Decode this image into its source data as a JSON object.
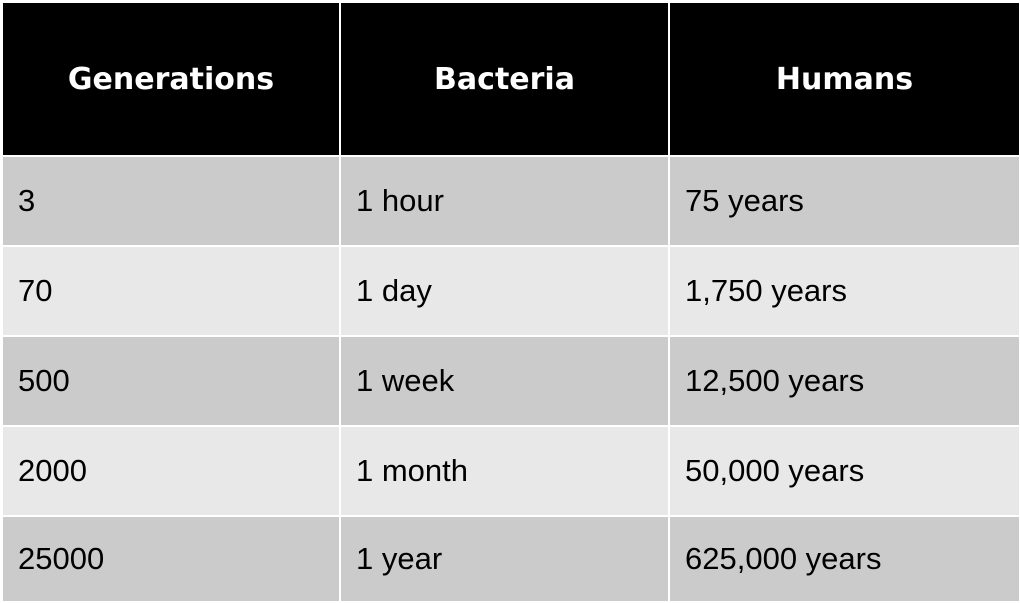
{
  "table": {
    "headers": [
      "Generations",
      "Bacteria",
      "Humans"
    ],
    "rows": [
      [
        "3",
        "1 hour",
        "75 years"
      ],
      [
        "70",
        "1 day",
        "1,750 years"
      ],
      [
        "500",
        "1 week",
        "12,500 years"
      ],
      [
        "2000",
        "1 month",
        "50,000 years"
      ],
      [
        "25000",
        "1 year",
        "625,000 years"
      ]
    ]
  },
  "colors": {
    "header_bg": "#000000",
    "header_text": "#ffffff",
    "row_dark": "#cbcbcb",
    "row_light": "#e8e8e8",
    "grid_lines": "#ffffff"
  }
}
